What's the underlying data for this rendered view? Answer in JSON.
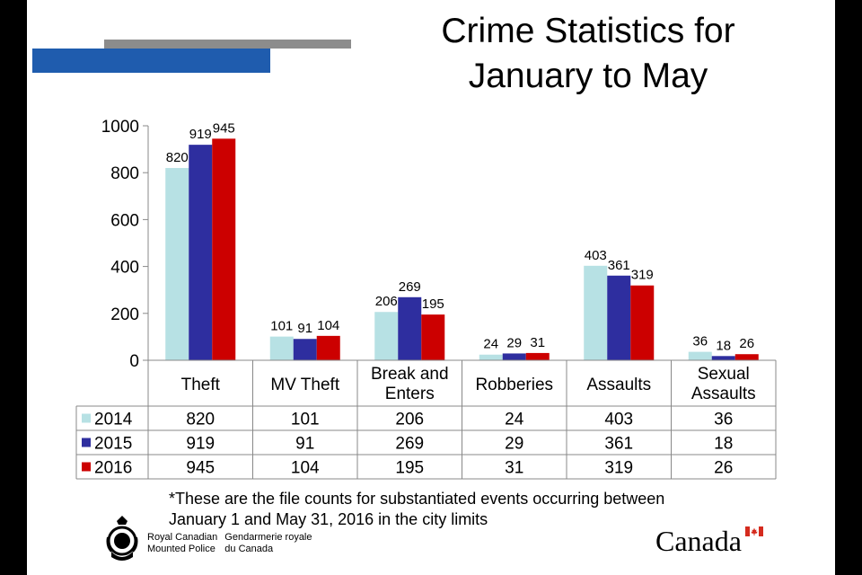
{
  "title_line1": "Crime Statistics for",
  "title_line2": "January to May",
  "footnote_line1": "*These are the file counts for substantiated events occurring between",
  "footnote_line2": "January 1 and May 31, 2016 in the city limits",
  "logos": {
    "rcmp_en_1": "Royal Canadian",
    "rcmp_en_2": "Mounted Police",
    "rcmp_fr_1": "Gendarmerie royale",
    "rcmp_fr_2": "du Canada",
    "canada_wordmark": "Canada"
  },
  "chart_data": {
    "type": "bar",
    "title": "",
    "xlabel": "",
    "ylabel": "",
    "categories": [
      "Theft",
      "MV Theft",
      "Break and Enters",
      "Robberies",
      "Assaults",
      "Sexual Assaults"
    ],
    "ylim": [
      0,
      1000
    ],
    "yticks": [
      0,
      200,
      400,
      600,
      800,
      1000
    ],
    "grid": false,
    "legend": "in data table",
    "series": [
      {
        "name": "2014",
        "color": "#b7e1e4",
        "values": [
          820,
          101,
          206,
          24,
          403,
          36
        ]
      },
      {
        "name": "2015",
        "color": "#2e2e9f",
        "values": [
          919,
          91,
          269,
          29,
          361,
          18
        ]
      },
      {
        "name": "2016",
        "color": "#cc0000",
        "values": [
          945,
          104,
          195,
          31,
          319,
          26
        ]
      }
    ]
  }
}
